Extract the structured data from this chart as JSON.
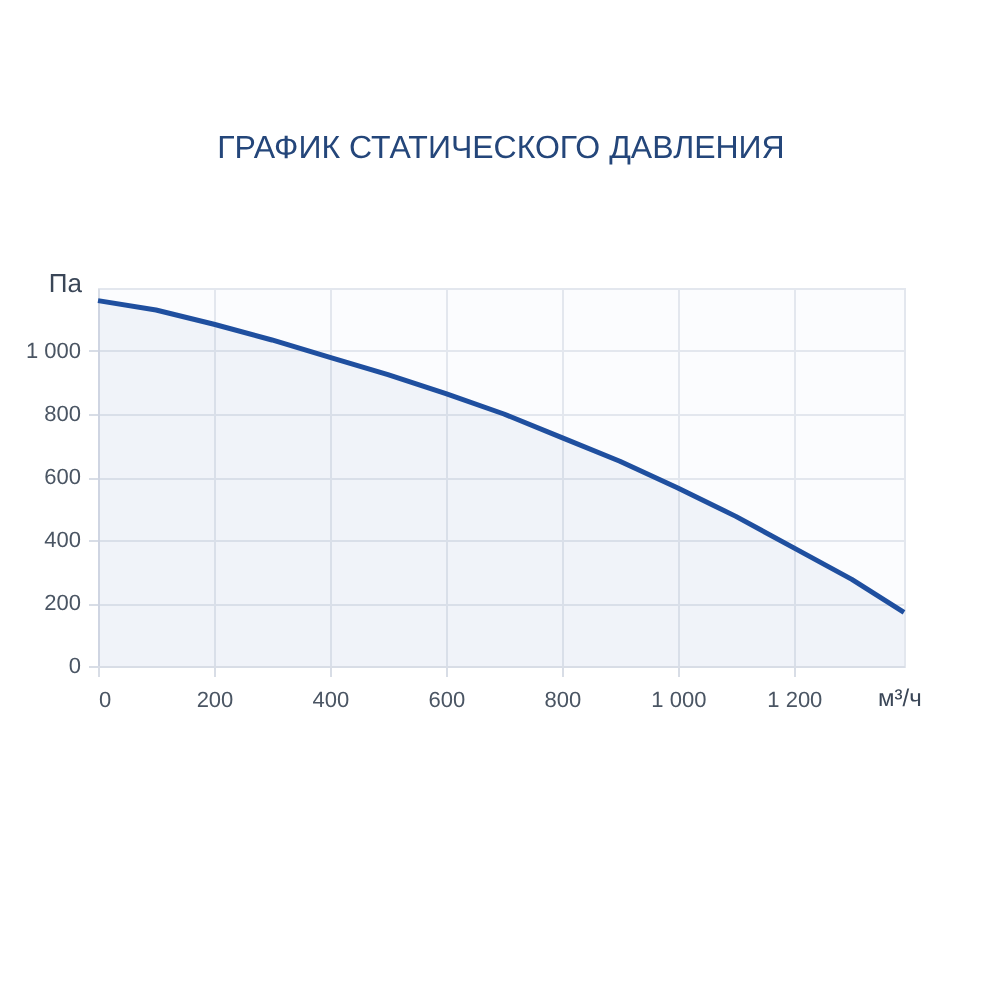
{
  "chart_data": {
    "type": "area",
    "title": "ГРАФИК СТАТИЧЕСКОГО ДАВЛЕНИЯ",
    "xlabel": "м³/ч",
    "ylabel": "Па",
    "x": [
      0,
      100,
      200,
      300,
      400,
      500,
      600,
      700,
      800,
      900,
      1000,
      1100,
      1200,
      1300,
      1390
    ],
    "series": [
      {
        "color": "#1f4f9f",
        "values": [
          1160,
          1130,
          1085,
          1035,
          980,
          925,
          865,
          800,
          725,
          650,
          565,
          475,
          375,
          275,
          170
        ]
      }
    ],
    "xlim": [
      0,
      1390
    ],
    "ylim": [
      0,
      1200
    ],
    "xticks": [
      0,
      200,
      400,
      600,
      800,
      {
        "value": 1000,
        "label": "1 000"
      },
      {
        "value": 1200,
        "label": "1 200"
      }
    ],
    "yticks": [
      0,
      200,
      400,
      600,
      800,
      {
        "value": 1000,
        "label": "1 000"
      }
    ],
    "grid": true
  }
}
